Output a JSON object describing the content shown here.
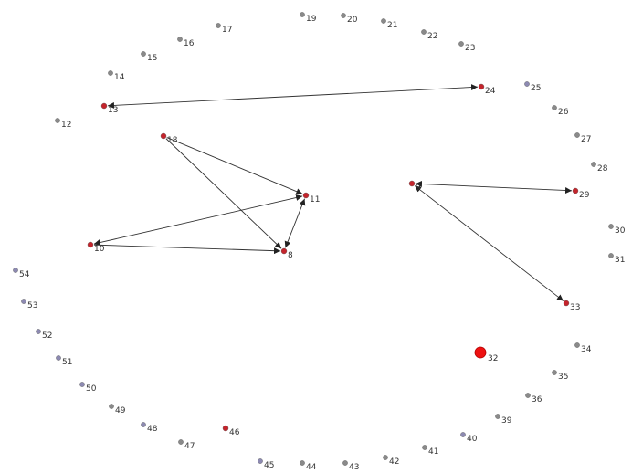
{
  "colors": {
    "background": "#ffffff",
    "edge": "#333333",
    "node_gray": "#8a8a8a",
    "node_lavender": "#8d8ab2",
    "node_red": "#c4242c",
    "node_big_red": "#ee1111"
  },
  "nodes": [
    {
      "id": "8",
      "label": "8",
      "kind": "red"
    },
    {
      "id": "9",
      "label": "9",
      "kind": "red"
    },
    {
      "id": "10",
      "label": "10",
      "kind": "red"
    },
    {
      "id": "11",
      "label": "11",
      "kind": "red"
    },
    {
      "id": "12",
      "label": "12",
      "kind": "gray"
    },
    {
      "id": "13",
      "label": "13",
      "kind": "red"
    },
    {
      "id": "14",
      "label": "14",
      "kind": "gray"
    },
    {
      "id": "15",
      "label": "15",
      "kind": "gray"
    },
    {
      "id": "16",
      "label": "16",
      "kind": "gray"
    },
    {
      "id": "17",
      "label": "17",
      "kind": "gray"
    },
    {
      "id": "18",
      "label": "18",
      "kind": "red"
    },
    {
      "id": "19",
      "label": "19",
      "kind": "gray"
    },
    {
      "id": "20",
      "label": "20",
      "kind": "gray"
    },
    {
      "id": "21",
      "label": "21",
      "kind": "gray"
    },
    {
      "id": "22",
      "label": "22",
      "kind": "gray"
    },
    {
      "id": "23",
      "label": "23",
      "kind": "gray"
    },
    {
      "id": "24",
      "label": "24",
      "kind": "red"
    },
    {
      "id": "25",
      "label": "25",
      "kind": "lavender"
    },
    {
      "id": "26",
      "label": "26",
      "kind": "gray"
    },
    {
      "id": "27",
      "label": "27",
      "kind": "gray"
    },
    {
      "id": "28",
      "label": "28",
      "kind": "gray"
    },
    {
      "id": "29",
      "label": "29",
      "kind": "red"
    },
    {
      "id": "30",
      "label": "30",
      "kind": "gray"
    },
    {
      "id": "31",
      "label": "31",
      "kind": "gray"
    },
    {
      "id": "32",
      "label": "32",
      "kind": "big"
    },
    {
      "id": "33",
      "label": "33",
      "kind": "red"
    },
    {
      "id": "34",
      "label": "34",
      "kind": "gray"
    },
    {
      "id": "35",
      "label": "35",
      "kind": "gray"
    },
    {
      "id": "36",
      "label": "36",
      "kind": "gray"
    },
    {
      "id": "39",
      "label": "39",
      "kind": "gray"
    },
    {
      "id": "40",
      "label": "40",
      "kind": "lavender"
    },
    {
      "id": "41",
      "label": "41",
      "kind": "gray"
    },
    {
      "id": "42",
      "label": "42",
      "kind": "gray"
    },
    {
      "id": "43",
      "label": "43",
      "kind": "gray"
    },
    {
      "id": "44",
      "label": "44",
      "kind": "gray"
    },
    {
      "id": "45",
      "label": "45",
      "kind": "lavender"
    },
    {
      "id": "46",
      "label": "46",
      "kind": "red"
    },
    {
      "id": "47",
      "label": "47",
      "kind": "gray"
    },
    {
      "id": "48",
      "label": "48",
      "kind": "lavender"
    },
    {
      "id": "49",
      "label": "49",
      "kind": "gray"
    },
    {
      "id": "50",
      "label": "50",
      "kind": "lavender"
    },
    {
      "id": "51",
      "label": "51",
      "kind": "lavender"
    },
    {
      "id": "52",
      "label": "52",
      "kind": "lavender"
    },
    {
      "id": "53",
      "label": "53",
      "kind": "lavender"
    },
    {
      "id": "54",
      "label": "54",
      "kind": "lavender"
    }
  ],
  "edges": [
    {
      "from": "13",
      "to": "24",
      "dir": "both"
    },
    {
      "from": "18",
      "to": "11",
      "dir": "forward"
    },
    {
      "from": "18",
      "to": "8",
      "dir": "forward"
    },
    {
      "from": "10",
      "to": "11",
      "dir": "both"
    },
    {
      "from": "10",
      "to": "8",
      "dir": "forward"
    },
    {
      "from": "8",
      "to": "11",
      "dir": "both"
    },
    {
      "from": "9",
      "to": "29",
      "dir": "both"
    },
    {
      "from": "9",
      "to": "33",
      "dir": "both"
    }
  ]
}
